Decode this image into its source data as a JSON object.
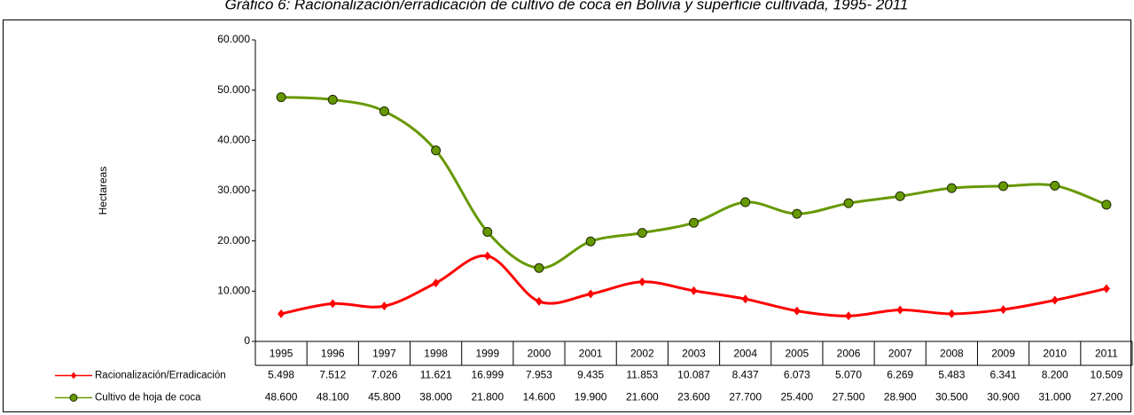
{
  "chart_data": {
    "type": "line",
    "title": "Gráfico 6:  Racionalización/erradicación de cultivo de coca en Bolivia y superficie cultivada, 1995- 2011",
    "y_label": "Hectareas",
    "categories": [
      "1995",
      "1996",
      "1997",
      "1998",
      "1999",
      "2000",
      "2001",
      "2002",
      "2003",
      "2004",
      "2005",
      "2006",
      "2007",
      "2008",
      "2009",
      "2010",
      "2011"
    ],
    "series": [
      {
        "name": "Racionalización/Erradicación",
        "color": "#ff0000",
        "marker": "diamond",
        "values": [
          5498,
          7512,
          7026,
          11621,
          16999,
          7953,
          9435,
          11853,
          10087,
          8437,
          6073,
          5070,
          6269,
          5483,
          6341,
          8200,
          10509
        ],
        "value_labels": [
          "5.498",
          "7.512",
          "7.026",
          "11.621",
          "16.999",
          "7.953",
          "9.435",
          "11.853",
          "10.087",
          "8.437",
          "6.073",
          "5.070",
          "6.269",
          "5.483",
          "6.341",
          "8.200",
          "10.509"
        ]
      },
      {
        "name": "Cultivo de hoja de coca",
        "color": "#669900",
        "marker": "circle",
        "values": [
          48600,
          48100,
          45800,
          38000,
          21800,
          14600,
          19900,
          21600,
          23600,
          27700,
          25400,
          27500,
          28900,
          30500,
          30900,
          31000,
          27200
        ],
        "value_labels": [
          "48.600",
          "48.100",
          "45.800",
          "38.000",
          "21.800",
          "14.600",
          "19.900",
          "21.600",
          "23.600",
          "27.700",
          "25.400",
          "27.500",
          "28.900",
          "30.500",
          "30.900",
          "31.000",
          "27.200"
        ]
      }
    ],
    "ylim": [
      0,
      60000
    ],
    "yticks": [
      {
        "value": 0,
        "label": "0"
      },
      {
        "value": 10000,
        "label": "10.000"
      },
      {
        "value": 20000,
        "label": "20.000"
      },
      {
        "value": 30000,
        "label": "30.000"
      },
      {
        "value": 40000,
        "label": "40.000"
      },
      {
        "value": 50000,
        "label": "50.000"
      },
      {
        "value": 60000,
        "label": "60.000"
      }
    ]
  }
}
